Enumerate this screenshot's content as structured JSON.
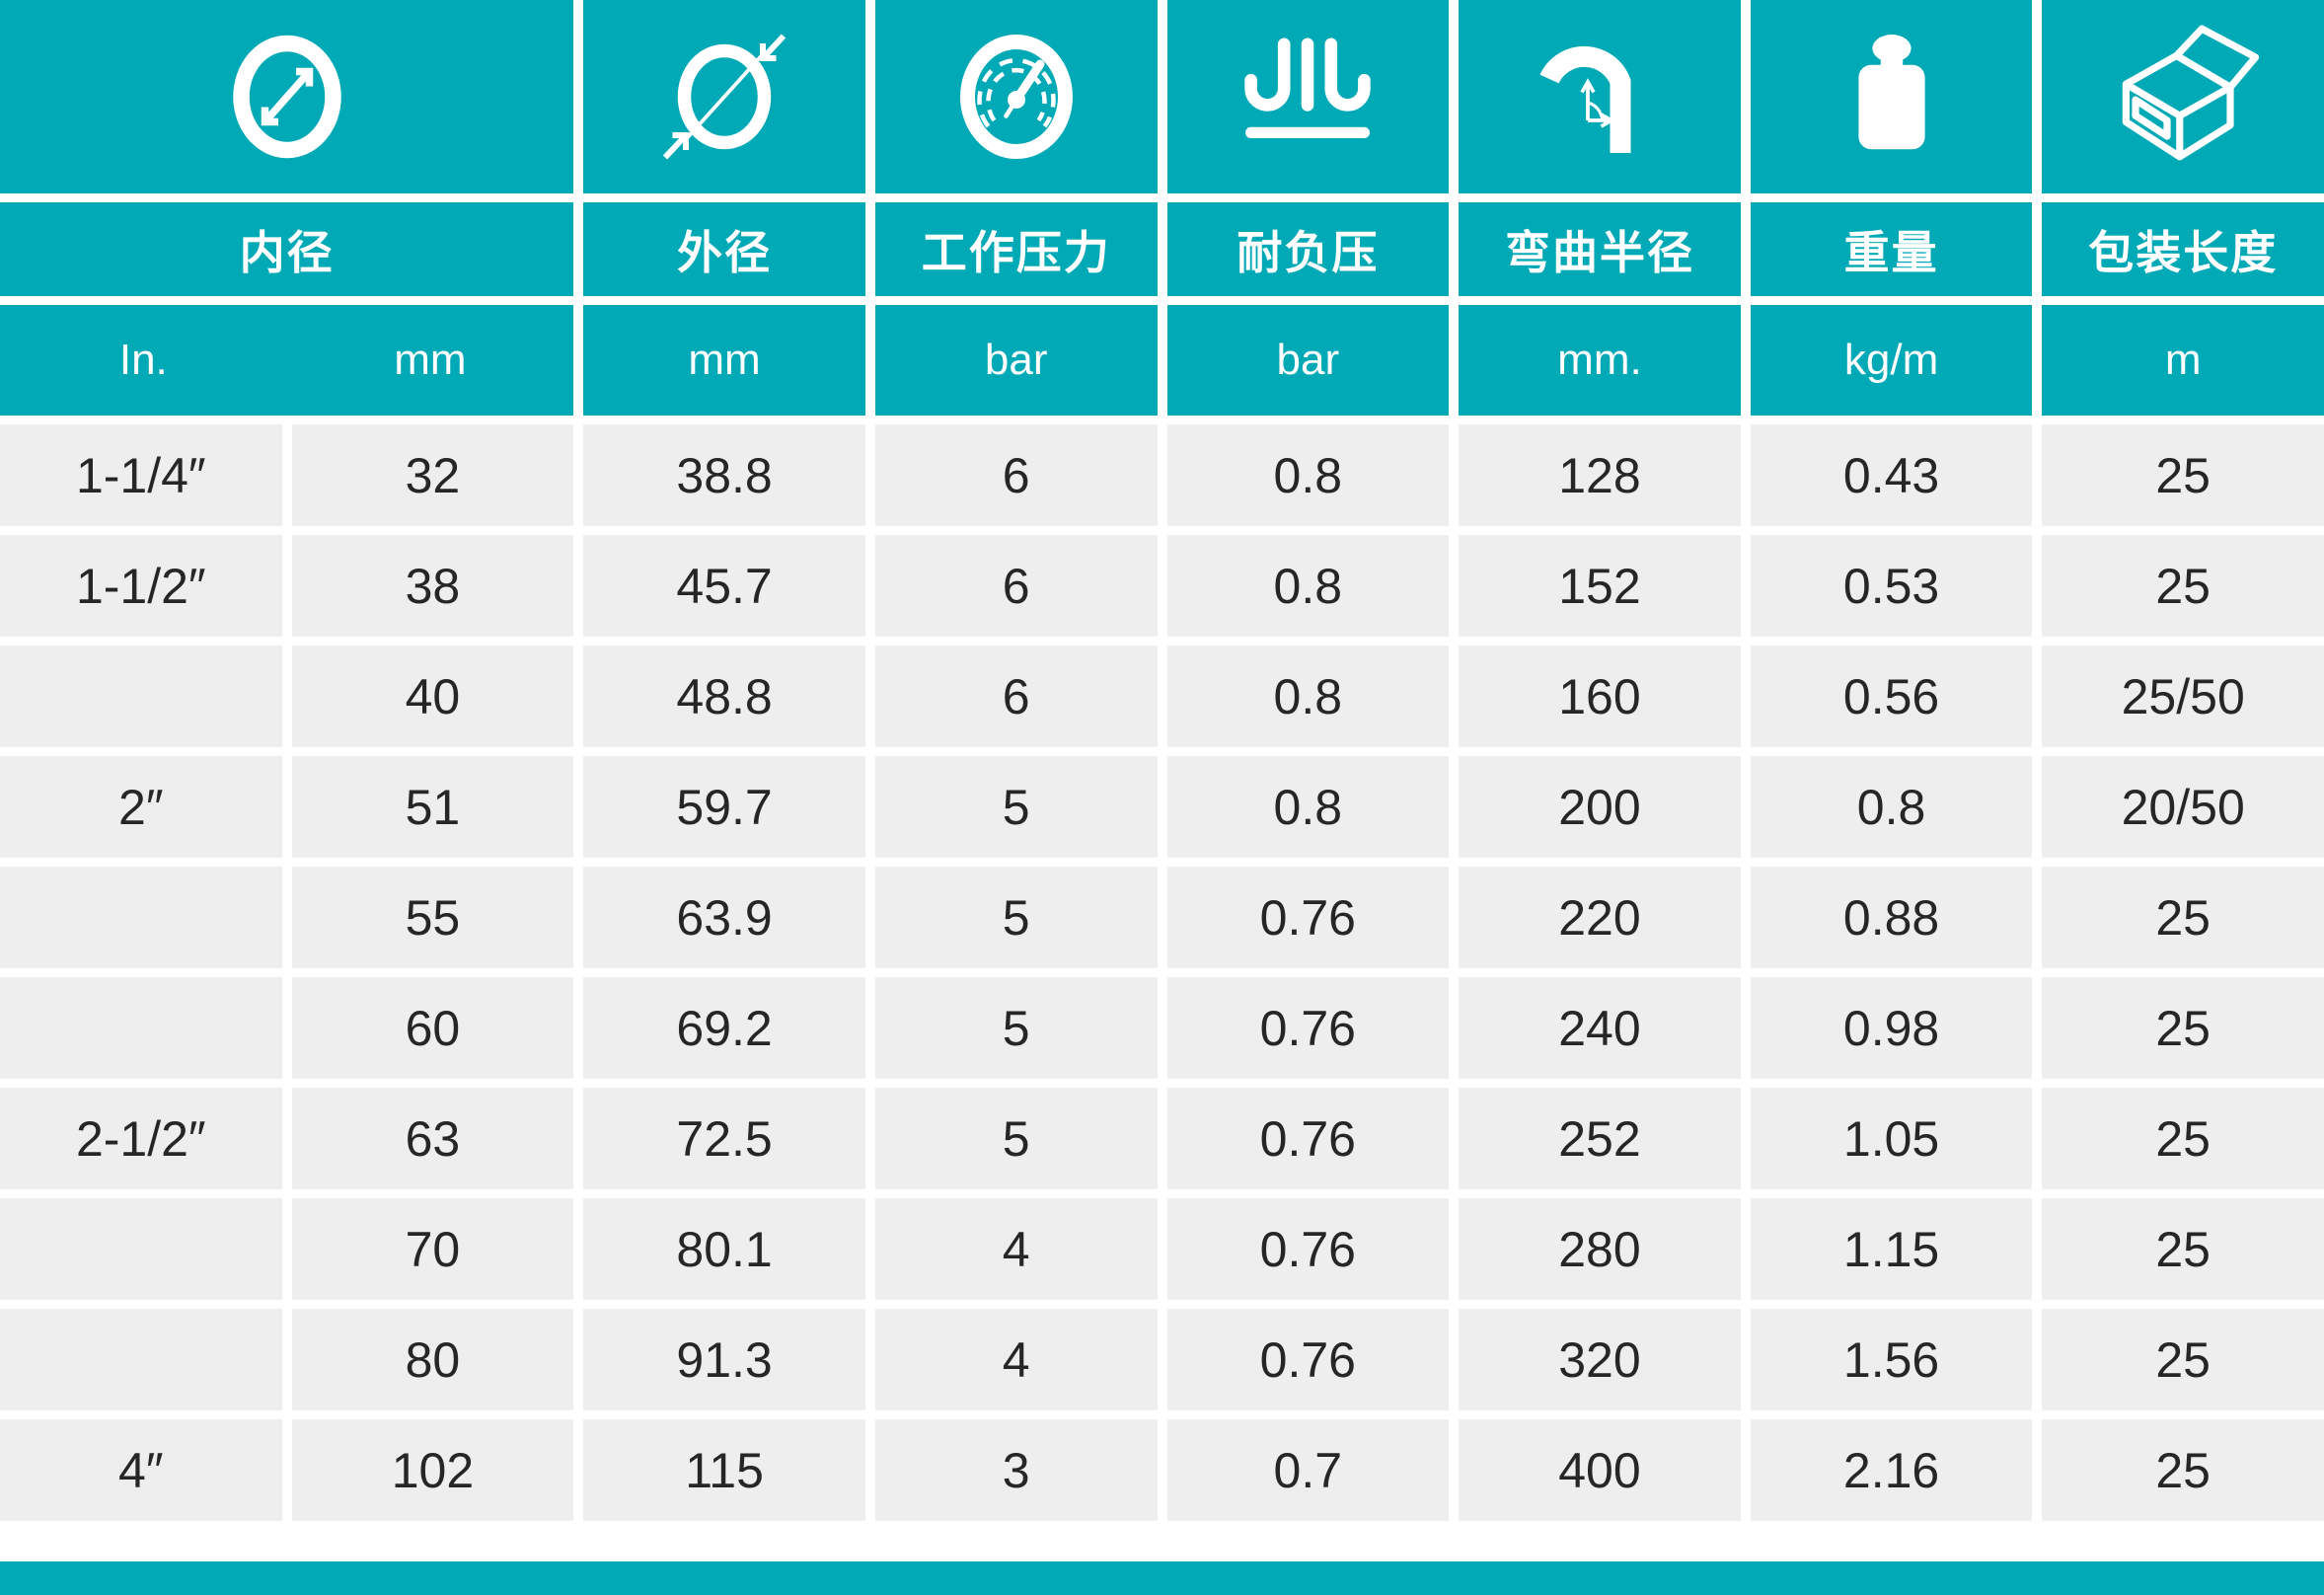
{
  "table_title": "hose-specification-table",
  "colors": {
    "accent_teal": "#00a9b6",
    "row_gray": "#eeeeee",
    "text_dark": "#262626",
    "gap_white": "#ffffff"
  },
  "columns": [
    {
      "icon": "inner-diameter-icon",
      "label": "内径",
      "units": [
        "In.",
        "mm"
      ]
    },
    {
      "icon": "outer-diameter-icon",
      "label": "外径",
      "unit": "mm"
    },
    {
      "icon": "pressure-gauge-icon",
      "label": "工作压力",
      "unit": "bar"
    },
    {
      "icon": "negative-pressure-icon",
      "label": "耐负压",
      "unit": "bar"
    },
    {
      "icon": "bend-radius-icon",
      "label": "弯曲半径",
      "unit": "mm."
    },
    {
      "icon": "weight-icon",
      "label": "重量",
      "unit": "kg/m"
    },
    {
      "icon": "package-length-icon",
      "label": "包装长度",
      "unit": "m"
    }
  ],
  "rows": [
    [
      "1-1/4″",
      "32",
      "38.8",
      "6",
      "0.8",
      "128",
      "0.43",
      "25"
    ],
    [
      "1-1/2″",
      "38",
      "45.7",
      "6",
      "0.8",
      "152",
      "0.53",
      "25"
    ],
    [
      "",
      "40",
      "48.8",
      "6",
      "0.8",
      "160",
      "0.56",
      "25/50"
    ],
    [
      "2″",
      "51",
      "59.7",
      "5",
      "0.8",
      "200",
      "0.8",
      "20/50"
    ],
    [
      "",
      "55",
      "63.9",
      "5",
      "0.76",
      "220",
      "0.88",
      "25"
    ],
    [
      "",
      "60",
      "69.2",
      "5",
      "0.76",
      "240",
      "0.98",
      "25"
    ],
    [
      "2-1/2″",
      "63",
      "72.5",
      "5",
      "0.76",
      "252",
      "1.05",
      "25"
    ],
    [
      "",
      "70",
      "80.1",
      "4",
      "0.76",
      "280",
      "1.15",
      "25"
    ],
    [
      "",
      "80",
      "91.3",
      "4",
      "0.76",
      "320",
      "1.56",
      "25"
    ],
    [
      "4″",
      "102",
      "115",
      "3",
      "0.7",
      "400",
      "2.16",
      "25"
    ]
  ]
}
